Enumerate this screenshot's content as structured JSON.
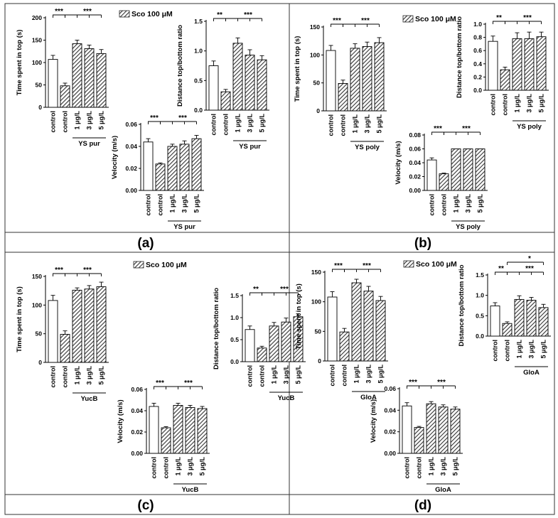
{
  "figure": {
    "legend_label": "Sco 100 μM",
    "x_labels": [
      "control",
      "control",
      "1 μg/L",
      "3 μg/L",
      "5 μg/L"
    ],
    "sig_label_left": "***",
    "panels": [
      {
        "label": "(a)",
        "group": "YS pur"
      },
      {
        "label": "(b)",
        "group": "YS poly"
      },
      {
        "label": "(c)",
        "group": "YucB"
      },
      {
        "label": "(d)",
        "group": "GloA"
      }
    ]
  },
  "chart_data": [
    {
      "type": "bar",
      "panel": "(a)",
      "ylabel": "Time spent in top (s)",
      "group_label": "YS pur",
      "categories": [
        "control",
        "control",
        "1 μg/L",
        "3 μg/L",
        "5 μg/L"
      ],
      "values": [
        107,
        48,
        142,
        131,
        120
      ],
      "errors": [
        9,
        6,
        8,
        8,
        9
      ],
      "ylim": [
        0,
        200
      ],
      "yticks": [
        0,
        50,
        100,
        150,
        200
      ],
      "significance": [
        "***",
        "***"
      ]
    },
    {
      "type": "bar",
      "panel": "(a)",
      "ylabel": "Distance top/bottom ratio",
      "group_label": "YS pur",
      "categories": [
        "control",
        "control",
        "1 μg/L",
        "3 μg/L",
        "5 μg/L"
      ],
      "values": [
        0.75,
        0.31,
        1.13,
        0.93,
        0.85
      ],
      "errors": [
        0.08,
        0.04,
        0.09,
        0.09,
        0.07
      ],
      "ylim": [
        0,
        1.5
      ],
      "yticks": [
        0.0,
        0.5,
        1.0,
        1.5
      ],
      "significance": [
        "**",
        "***"
      ]
    },
    {
      "type": "bar",
      "panel": "(a)",
      "ylabel": "Velocity (m/s)",
      "group_label": "YS pur",
      "categories": [
        "control",
        "control",
        "1 μg/L",
        "3 μg/L",
        "5 μg/L"
      ],
      "values": [
        0.044,
        0.024,
        0.04,
        0.042,
        0.047
      ],
      "errors": [
        0.003,
        0.001,
        0.002,
        0.003,
        0.003
      ],
      "ylim": [
        0,
        0.06
      ],
      "yticks": [
        0.0,
        0.02,
        0.04,
        0.06
      ],
      "significance": [
        "***",
        "***"
      ]
    },
    {
      "type": "bar",
      "panel": "(b)",
      "ylabel": "Time spent in top (s)",
      "group_label": "YS poly",
      "categories": [
        "control",
        "control",
        "1 μg/L",
        "3 μg/L",
        "5 μg/L"
      ],
      "values": [
        108,
        49,
        112,
        115,
        122
      ],
      "errors": [
        9,
        6,
        8,
        8,
        9
      ],
      "ylim": [
        0,
        150
      ],
      "yticks": [
        0,
        50,
        100,
        150
      ],
      "significance": [
        "***",
        "***"
      ]
    },
    {
      "type": "bar",
      "panel": "(b)",
      "ylabel": "Distance top/bottom ratio",
      "group_label": "YS poly",
      "categories": [
        "control",
        "control",
        "1 μg/L",
        "3 μg/L",
        "5 μg/L"
      ],
      "values": [
        0.74,
        0.31,
        0.78,
        0.78,
        0.81
      ],
      "errors": [
        0.08,
        0.04,
        0.09,
        0.1,
        0.07
      ],
      "ylim": [
        0,
        1.0
      ],
      "yticks": [
        0.0,
        0.2,
        0.4,
        0.6,
        0.8,
        1.0
      ],
      "significance": [
        "**",
        "***"
      ]
    },
    {
      "type": "bar",
      "panel": "(b)",
      "ylabel": "Velocity (m/s)",
      "group_label": "YS poly",
      "categories": [
        "control",
        "control",
        "1 μg/L",
        "3 μg/L",
        "5 μg/L"
      ],
      "values": [
        0.044,
        0.024,
        0.06,
        0.06,
        0.06
      ],
      "errors": [
        0.003,
        0.001,
        0.0,
        0.0,
        0.0
      ],
      "ylim": [
        0,
        0.08
      ],
      "yticks": [
        0.0,
        0.02,
        0.04,
        0.06,
        0.08
      ],
      "significance": [
        "***",
        "***"
      ]
    },
    {
      "type": "bar",
      "panel": "(c)",
      "ylabel": "Time spent in top (s)",
      "group_label": "YucB",
      "categories": [
        "control",
        "control",
        "1 μg/L",
        "3 μg/L",
        "5 μg/L"
      ],
      "values": [
        108,
        49,
        126,
        128,
        132
      ],
      "errors": [
        9,
        6,
        4,
        6,
        8
      ],
      "ylim": [
        0,
        150
      ],
      "yticks": [
        0,
        50,
        100,
        150
      ],
      "significance": [
        "***",
        "***"
      ]
    },
    {
      "type": "bar",
      "panel": "(c)",
      "ylabel": "Distance top/bottom ratio",
      "group_label": "YucB",
      "categories": [
        "control",
        "control",
        "1 μg/L",
        "3 μg/L",
        "5 μg/L"
      ],
      "values": [
        0.73,
        0.31,
        0.81,
        0.9,
        1.02
      ],
      "errors": [
        0.08,
        0.04,
        0.08,
        0.09,
        0.07
      ],
      "ylim": [
        0,
        1.5
      ],
      "yticks": [
        0.0,
        0.5,
        1.0,
        1.5
      ],
      "significance": [
        "**",
        "***"
      ]
    },
    {
      "type": "bar",
      "panel": "(c)",
      "ylabel": "Velocity (m/s)",
      "group_label": "YucB",
      "categories": [
        "control",
        "control",
        "1 μg/L",
        "3 μg/L",
        "5 μg/L"
      ],
      "values": [
        0.044,
        0.024,
        0.045,
        0.043,
        0.042
      ],
      "errors": [
        0.003,
        0.001,
        0.002,
        0.002,
        0.002
      ],
      "ylim": [
        0,
        0.06
      ],
      "yticks": [
        0.0,
        0.02,
        0.04,
        0.06
      ],
      "significance": [
        "***",
        "***"
      ]
    },
    {
      "type": "bar",
      "panel": "(d)",
      "ylabel": "Time spent in top (s)",
      "group_label": "GloA",
      "categories": [
        "control",
        "control",
        "1 μg/L",
        "3 μg/L",
        "5 μg/L"
      ],
      "values": [
        108,
        49,
        132,
        118,
        102
      ],
      "errors": [
        9,
        6,
        6,
        8,
        7
      ],
      "ylim": [
        0,
        150
      ],
      "yticks": [
        0,
        50,
        100,
        150
      ],
      "significance": [
        "***",
        "***"
      ]
    },
    {
      "type": "bar",
      "panel": "(d)",
      "ylabel": "Distance top/bottom ratio",
      "group_label": "GloA",
      "categories": [
        "control",
        "control",
        "1 μg/L",
        "3 μg/L",
        "5 μg/L"
      ],
      "values": [
        0.74,
        0.31,
        0.9,
        0.88,
        0.7
      ],
      "errors": [
        0.08,
        0.04,
        0.09,
        0.07,
        0.08
      ],
      "ylim": [
        0,
        1.5
      ],
      "yticks": [
        0.0,
        0.5,
        1.0,
        1.5
      ],
      "significance": [
        "**",
        "***",
        "*"
      ]
    },
    {
      "type": "bar",
      "panel": "(d)",
      "ylabel": "Velocity (m/s)",
      "group_label": "GloA",
      "categories": [
        "control",
        "control",
        "1 μg/L",
        "3 μg/L",
        "5 μg/L"
      ],
      "values": [
        0.044,
        0.024,
        0.046,
        0.043,
        0.041
      ],
      "errors": [
        0.003,
        0.001,
        0.002,
        0.002,
        0.002
      ],
      "ylim": [
        0,
        0.06
      ],
      "yticks": [
        0.0,
        0.02,
        0.04,
        0.06
      ],
      "significance": [
        "***",
        "***"
      ]
    }
  ]
}
